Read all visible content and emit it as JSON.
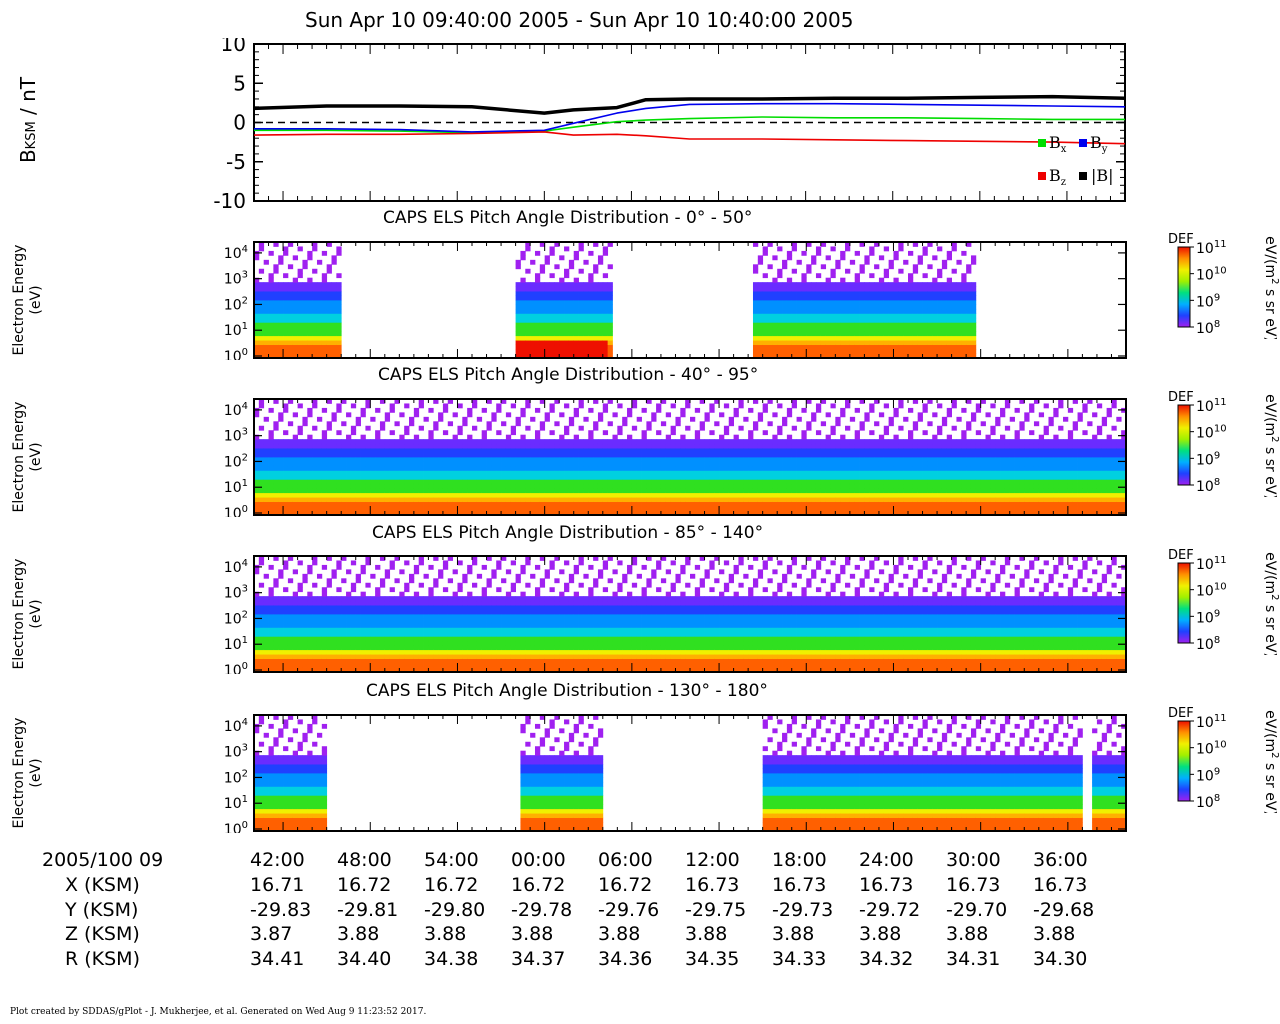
{
  "title": "Sun Apr 10 09:40:00 2005 - Sun Apr 10 10:40:00 2005",
  "credit": "Plot created by SDDAS/gPlot - J. Mukherjee, et al.  Generated on Wed Aug 9 11:23:52 2017.",
  "colors": {
    "bx": "#00dd00",
    "by": "#0000ee",
    "bz": "#ee0000",
    "bmag": "#000000"
  },
  "mag_panel": {
    "ylabel": "B",
    "ylabel_sub": "KSM",
    "ylabel_unit": " / nT",
    "legend": [
      "B",
      "x",
      "B",
      "y",
      "B",
      "z",
      "|B|"
    ]
  },
  "chart_data": [
    {
      "type": "line",
      "title": "",
      "ylabel": "B_KSM / nT",
      "ylim": [
        -10,
        10
      ],
      "yticks": [
        -10,
        -5,
        0,
        5,
        10
      ],
      "x_minutes_after_0940": [
        0,
        5,
        10,
        15,
        20,
        22,
        25,
        27,
        30,
        35,
        40,
        45,
        50,
        55,
        60
      ],
      "series": [
        {
          "name": "Bx",
          "values": [
            -1.0,
            -1.0,
            -1.1,
            -1.3,
            -1.1,
            -0.6,
            0.1,
            0.3,
            0.5,
            0.7,
            0.6,
            0.6,
            0.5,
            0.4,
            0.4
          ]
        },
        {
          "name": "By",
          "values": [
            -0.8,
            -0.8,
            -0.9,
            -1.2,
            -1.0,
            -0.1,
            1.2,
            1.8,
            2.3,
            2.4,
            2.4,
            2.3,
            2.2,
            2.1,
            2.0
          ]
        },
        {
          "name": "Bz",
          "values": [
            -1.6,
            -1.5,
            -1.5,
            -1.4,
            -1.2,
            -1.6,
            -1.5,
            -1.7,
            -2.1,
            -2.1,
            -2.2,
            -2.3,
            -2.4,
            -2.5,
            -2.7
          ]
        },
        {
          "name": "|B|",
          "values": [
            1.8,
            2.1,
            2.1,
            2.0,
            1.2,
            1.6,
            1.9,
            2.9,
            3.0,
            3.0,
            3.1,
            3.1,
            3.2,
            3.3,
            3.1
          ]
        }
      ],
      "zero_line": "dashed"
    },
    {
      "type": "heatmap",
      "title": "CAPS ELS Pitch Angle Distribution - 0° - 50°",
      "ylabel": "Electron Energy (eV)",
      "yticks": [
        "10^0",
        "10^1",
        "10^2",
        "10^3",
        "10^4"
      ],
      "colorbar": {
        "label": "DEF",
        "unit": "eV/(m² s sr eV)",
        "range": [
          "10^8",
          "10^11"
        ]
      },
      "data_intervals_min": [
        [
          0,
          6
        ],
        [
          18,
          24.5
        ],
        [
          34.5,
          49.5
        ]
      ]
    },
    {
      "type": "heatmap",
      "title": "CAPS ELS Pitch Angle Distribution - 40° - 95°",
      "ylabel": "Electron Energy (eV)",
      "yticks": [
        "10^0",
        "10^1",
        "10^2",
        "10^3",
        "10^4"
      ],
      "colorbar": {
        "label": "DEF",
        "unit": "eV/(m² s sr eV)",
        "range": [
          "10^8",
          "10^11"
        ]
      },
      "data_intervals_min": [
        [
          0,
          60
        ]
      ]
    },
    {
      "type": "heatmap",
      "title": "CAPS ELS Pitch Angle Distribution - 85° - 140°",
      "ylabel": "Electron Energy (eV)",
      "yticks": [
        "10^0",
        "10^1",
        "10^2",
        "10^3",
        "10^4"
      ],
      "colorbar": {
        "label": "DEF",
        "unit": "eV/(m² s sr eV)",
        "range": [
          "10^8",
          "10^11"
        ]
      },
      "data_intervals_min": [
        [
          0,
          60
        ]
      ]
    },
    {
      "type": "heatmap",
      "title": "CAPS ELS Pitch Angle Distribution - 130° - 180°",
      "ylabel": "Electron Energy (eV)",
      "yticks": [
        "10^0",
        "10^1",
        "10^2",
        "10^3",
        "10^4"
      ],
      "colorbar": {
        "label": "DEF",
        "unit": "eV/(m² s sr eV)",
        "range": [
          "10^8",
          "10^11"
        ]
      },
      "data_intervals_min": [
        [
          0,
          5
        ],
        [
          18.5,
          24
        ],
        [
          35,
          57
        ],
        [
          57.5,
          60
        ]
      ]
    }
  ],
  "heat_labels": {
    "ylabel_line1": "Electron Energy",
    "ylabel_line2": "(eV)",
    "cb_label": "DEF",
    "cb_unit_a": "eV/(m",
    "cb_unit_b": "2",
    "cb_unit_c": " s sr eV)",
    "ytick_base": "10",
    "ytick_exps": [
      "0",
      "1",
      "2",
      "3",
      "4"
    ],
    "cb_exps": [
      "11",
      "10",
      "9",
      "8"
    ]
  },
  "orbit_table": {
    "date_label": "2005/100 09",
    "row_labels": [
      "X (KSM)",
      "Y (KSM)",
      "Z (KSM)",
      "R (KSM)"
    ],
    "times": [
      "42:00",
      "48:00",
      "54:00",
      "00:00",
      "06:00",
      "12:00",
      "18:00",
      "24:00",
      "30:00",
      "36:00"
    ],
    "x": [
      "16.71",
      "16.72",
      "16.72",
      "16.72",
      "16.72",
      "16.73",
      "16.73",
      "16.73",
      "16.73",
      "16.73"
    ],
    "y": [
      "-29.83",
      "-29.81",
      "-29.80",
      "-29.78",
      "-29.76",
      "-29.75",
      "-29.73",
      "-29.72",
      "-29.70",
      "-29.68"
    ],
    "z": [
      "3.87",
      "3.88",
      "3.88",
      "3.88",
      "3.88",
      "3.88",
      "3.88",
      "3.88",
      "3.88",
      "3.88"
    ],
    "r": [
      "34.41",
      "34.40",
      "34.38",
      "34.37",
      "34.36",
      "34.35",
      "34.33",
      "34.32",
      "34.31",
      "34.30"
    ]
  }
}
